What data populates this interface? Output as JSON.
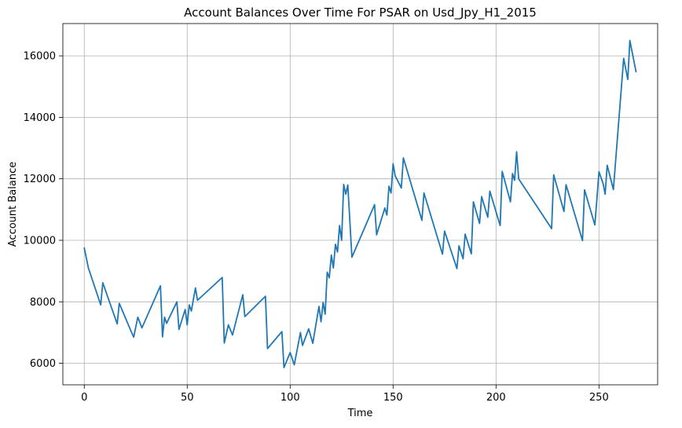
{
  "chart_data": {
    "type": "line",
    "title": "Account Balances Over Time For PSAR on Usd_Jpy_H1_2015",
    "xlabel": "Time",
    "ylabel": "Account Balance",
    "xlim": [
      -10.4,
      278.5
    ],
    "ylim": [
      5300,
      17050
    ],
    "xticks": [
      0,
      50,
      100,
      150,
      200,
      250
    ],
    "yticks": [
      6000,
      8000,
      10000,
      12000,
      14000,
      16000
    ],
    "grid": true,
    "line_color": "#1f77b4",
    "series": [
      {
        "x": [
          0,
          2,
          8,
          9,
          16,
          17,
          23,
          24,
          26,
          28,
          37,
          38,
          39,
          40,
          45,
          46,
          49,
          50,
          51,
          52,
          54,
          55,
          67,
          68,
          70,
          72,
          77,
          78,
          88,
          89,
          96,
          97,
          100,
          102,
          105,
          106,
          109,
          111,
          114,
          115,
          116,
          117,
          118,
          119,
          120,
          121,
          122,
          123,
          124,
          125,
          126,
          127,
          128,
          130,
          141,
          142,
          146,
          147,
          148,
          149,
          150,
          151,
          154,
          155,
          164,
          165,
          174,
          175,
          181,
          182,
          184,
          185,
          188,
          189,
          192,
          193,
          196,
          197,
          202,
          203,
          207,
          208,
          209,
          210,
          211,
          227,
          228,
          233,
          234,
          242,
          243,
          248,
          249,
          250,
          252,
          253,
          254,
          257,
          262,
          264,
          265,
          268
        ],
        "y": [
          9750,
          9100,
          7900,
          8620,
          7280,
          7950,
          7000,
          6850,
          7500,
          7150,
          8520,
          6860,
          7500,
          7300,
          8000,
          7100,
          7750,
          7250,
          7900,
          7700,
          8450,
          8050,
          8790,
          6660,
          7250,
          6920,
          8230,
          7520,
          8180,
          6480,
          7030,
          5860,
          6350,
          5950,
          7000,
          6580,
          7120,
          6650,
          7850,
          7350,
          7980,
          7600,
          8960,
          8780,
          9520,
          9100,
          9870,
          9620,
          10480,
          10000,
          11820,
          11500,
          11800,
          9450,
          11160,
          10180,
          11050,
          10820,
          11760,
          11540,
          12490,
          12100,
          11700,
          12680,
          10650,
          11540,
          9550,
          10300,
          9080,
          9820,
          9400,
          10200,
          9560,
          11250,
          10550,
          11420,
          10750,
          11600,
          10480,
          12240,
          11250,
          12170,
          11950,
          12880,
          12000,
          10380,
          12130,
          10940,
          11810,
          9990,
          11640,
          10500,
          11350,
          12230,
          11850,
          11500,
          12440,
          11650,
          15920,
          15230,
          16500,
          15480
        ]
      }
    ]
  }
}
